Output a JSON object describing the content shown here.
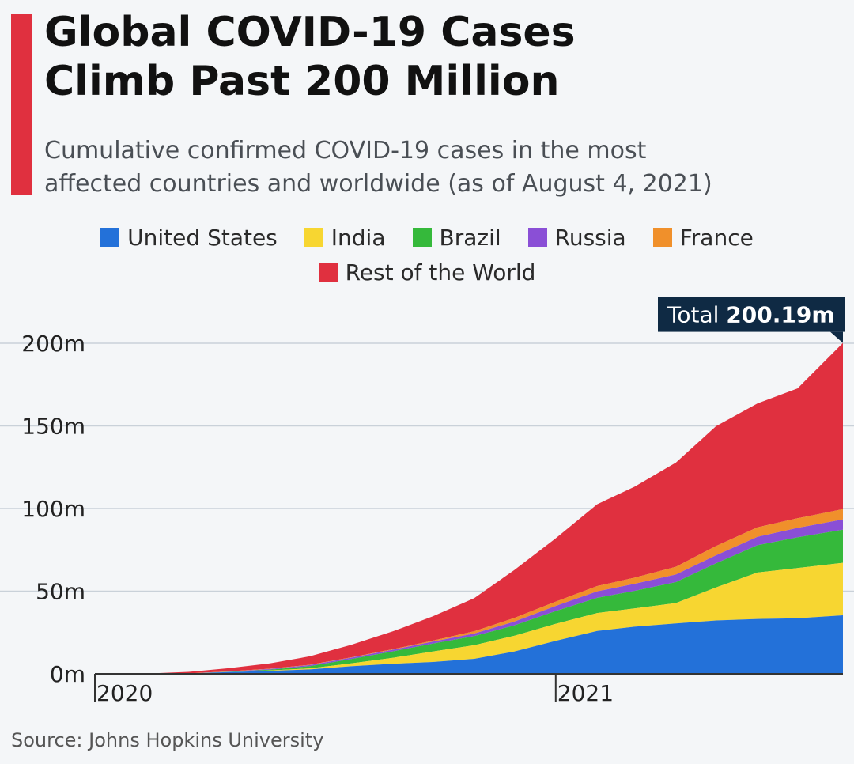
{
  "header": {
    "title_lines": [
      "Global COVID-19 Cases",
      "Climb Past 200 Million"
    ],
    "subtitle_lines": [
      "Cumulative confirmed COVID-19 cases in the most",
      "affected countries and worldwide (as of August 4, 2021)"
    ]
  },
  "source": "Source: Johns Hopkins University",
  "annotation": {
    "label": "Total",
    "value": "200.19m"
  },
  "colors": {
    "accent": "#e0303f",
    "grid": "#c9d1d9",
    "annotation_bg": "#0f2a44"
  },
  "chart_data": {
    "type": "area",
    "stacked": true,
    "x_unit": "date",
    "x": [
      "2020-01-22",
      "2020-03-01",
      "2020-04-01",
      "2020-05-01",
      "2020-06-01",
      "2020-07-01",
      "2020-08-01",
      "2020-09-01",
      "2020-10-01",
      "2020-11-01",
      "2020-12-01",
      "2021-01-01",
      "2021-02-01",
      "2021-03-01",
      "2021-04-01",
      "2021-05-01",
      "2021-06-01",
      "2021-07-01",
      "2021-08-04"
    ],
    "series": [
      {
        "name": "United States",
        "color": "#2371d9",
        "values": [
          0,
          0.1,
          0.2,
          1.1,
          1.8,
          2.7,
          4.6,
          6.1,
          7.2,
          9.1,
          13.5,
          20.0,
          26.0,
          28.5,
          30.5,
          32.3,
          33.2,
          33.6,
          35.4
        ]
      },
      {
        "name": "India",
        "color": "#f7d631",
        "values": [
          0,
          0,
          0,
          0,
          0.2,
          0.6,
          1.7,
          3.6,
          6.3,
          8.2,
          9.5,
          10.3,
          10.8,
          11.1,
          12.3,
          20.0,
          28.1,
          30.4,
          31.8
        ]
      },
      {
        "name": "Brazil",
        "color": "#35b93b",
        "values": [
          0,
          0,
          0,
          0.1,
          0.5,
          1.4,
          2.7,
          3.9,
          4.8,
          5.5,
          6.3,
          7.7,
          9.2,
          10.6,
          12.7,
          14.6,
          16.5,
          18.6,
          20.0
        ]
      },
      {
        "name": "Russia",
        "color": "#8a4fd6",
        "values": [
          0,
          0,
          0,
          0.1,
          0.4,
          0.6,
          0.8,
          1.0,
          1.2,
          1.6,
          2.3,
          3.1,
          3.9,
          4.3,
          4.6,
          4.8,
          5.1,
          5.7,
          6.2
        ]
      },
      {
        "name": "France",
        "color": "#f0902b",
        "values": [
          0,
          0,
          0.1,
          0.2,
          0.2,
          0.2,
          0.2,
          0.3,
          0.6,
          1.4,
          2.2,
          2.6,
          3.2,
          3.7,
          4.7,
          5.6,
          5.7,
          5.8,
          6.2
        ]
      },
      {
        "name": "Rest of the World",
        "color": "#e0303f",
        "values": [
          0.0006,
          0.1,
          0.9,
          1.9,
          3.2,
          5.1,
          7.6,
          10.8,
          14.7,
          20.0,
          29.0,
          38.3,
          49.5,
          55.0,
          63.0,
          72.5,
          75.0,
          78.6,
          100.6
        ]
      }
    ],
    "xlabel": "",
    "ylabel": "",
    "x_ticks": [
      {
        "value": "2020-01-22",
        "label": "2020"
      },
      {
        "value": "2021-01-01",
        "label": "2021"
      }
    ],
    "y_ticks": [
      0,
      50,
      100,
      150,
      200
    ],
    "y_tick_suffix": "m",
    "ylim": [
      0,
      200
    ],
    "grid": true,
    "legend_position": "top-center"
  }
}
